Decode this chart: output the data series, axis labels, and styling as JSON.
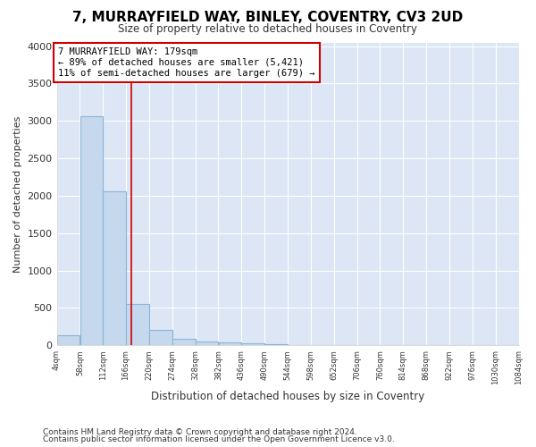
{
  "title": "7, MURRAYFIELD WAY, BINLEY, COVENTRY, CV3 2UD",
  "subtitle": "Size of property relative to detached houses in Coventry",
  "xlabel": "Distribution of detached houses by size in Coventry",
  "ylabel": "Number of detached properties",
  "bar_color": "#c5d8ed",
  "bar_edge_color": "#8ab4d8",
  "fig_background": "#ffffff",
  "axes_background": "#dce6f5",
  "grid_color": "#ffffff",
  "vline_color": "#cc0000",
  "vline_x": 179,
  "annotation_line1": "7 MURRAYFIELD WAY: 179sqm",
  "annotation_line2": "← 89% of detached houses are smaller (5,421)",
  "annotation_line3": "11% of semi-detached houses are larger (679) →",
  "annotation_box_facecolor": "#ffffff",
  "annotation_box_edgecolor": "#cc0000",
  "bins": [
    4,
    58,
    112,
    166,
    220,
    274,
    328,
    382,
    436,
    490,
    544,
    598,
    652,
    706,
    760,
    814,
    868,
    922,
    976,
    1030,
    1084
  ],
  "bar_heights": [
    130,
    3060,
    2060,
    550,
    210,
    85,
    55,
    40,
    30,
    10,
    0,
    0,
    0,
    0,
    0,
    0,
    0,
    0,
    0,
    0
  ],
  "ylim": [
    0,
    4050
  ],
  "xlim": [
    4,
    1084
  ],
  "yticks": [
    0,
    500,
    1000,
    1500,
    2000,
    2500,
    3000,
    3500,
    4000
  ],
  "xtick_positions": [
    4,
    58,
    112,
    166,
    220,
    274,
    328,
    382,
    436,
    490,
    544,
    598,
    652,
    706,
    760,
    814,
    868,
    922,
    976,
    1030,
    1084
  ],
  "xtick_labels": [
    "4sqm",
    "58sqm",
    "112sqm",
    "166sqm",
    "220sqm",
    "274sqm",
    "328sqm",
    "382sqm",
    "436sqm",
    "490sqm",
    "544sqm",
    "598sqm",
    "652sqm",
    "706sqm",
    "760sqm",
    "814sqm",
    "868sqm",
    "922sqm",
    "976sqm",
    "1030sqm",
    "1084sqm"
  ],
  "footnote1": "Contains HM Land Registry data © Crown copyright and database right 2024.",
  "footnote2": "Contains public sector information licensed under the Open Government Licence v3.0."
}
